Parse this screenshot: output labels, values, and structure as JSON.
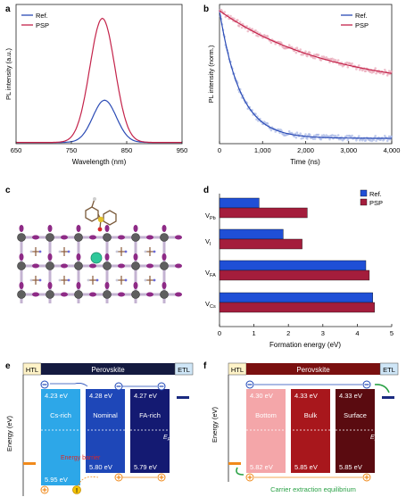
{
  "chart_data": [
    {
      "panel": "a",
      "type": "line",
      "xlabel": "Wavelength (nm)",
      "ylabel": "PL intensity (a.u.)",
      "xlim": [
        650,
        950
      ],
      "x_ticks": [
        "650",
        "750",
        "850",
        "950"
      ],
      "legend": "top-left",
      "series": [
        {
          "name": "Ref.",
          "color": "#2b4bb5",
          "peak_x": 810,
          "peak_y": 0.34,
          "width": 30
        },
        {
          "name": "PSP",
          "color": "#c4234a",
          "peak_x": 806,
          "peak_y": 1.0,
          "width": 32
        }
      ]
    },
    {
      "panel": "b",
      "type": "line",
      "xlabel": "Time (ns)",
      "ylabel": "PL intensity (norm.)",
      "xlim": [
        0,
        4000
      ],
      "x_ticks": [
        "0",
        "1,000",
        "2,000",
        "3,000",
        "4,000"
      ],
      "legend": "top-right",
      "series": [
        {
          "name": "Ref.",
          "color": "#2b4bb5",
          "tau": 480,
          "offset": 0.04
        },
        {
          "name": "PSP",
          "color": "#c4234a",
          "tau": 2600,
          "offset": 0.4
        }
      ]
    },
    {
      "panel": "d",
      "type": "bar",
      "orientation": "horizontal",
      "xlabel": "Formation energy (eV)",
      "xlim": [
        0,
        5
      ],
      "x_ticks": [
        "0",
        "1",
        "2",
        "3",
        "4",
        "5"
      ],
      "categories": [
        "V_Pb",
        "V_I",
        "V_FA",
        "V_Cs"
      ],
      "legend": "top-right",
      "series": [
        {
          "name": "Ref.",
          "color": "#1f4fd6",
          "values": [
            1.15,
            1.85,
            4.25,
            4.45
          ]
        },
        {
          "name": "PSP",
          "color": "#a41d3c",
          "values": [
            2.55,
            2.4,
            4.35,
            4.5
          ]
        }
      ]
    }
  ],
  "panels": {
    "a": "a",
    "b": "b",
    "c": "c",
    "d": "d",
    "e": "e",
    "f": "f"
  },
  "vacancy_labels": [
    {
      "main": "V",
      "sub": "Pb"
    },
    {
      "main": "V",
      "sub": "I"
    },
    {
      "main": "V",
      "sub": "FA"
    },
    {
      "main": "V",
      "sub": "Cs"
    }
  ],
  "panel_e": {
    "htl": "HTL",
    "perovskite": "Perovskite",
    "etl": "ETL",
    "ylabel": "Energy (eV)",
    "ef": "E",
    "ef_sub": "F",
    "columns": [
      {
        "name": "Cs-rich",
        "top": "4.23 eV",
        "bottom": "5.95 eV",
        "color": "#2da7e8"
      },
      {
        "name": "Nominal",
        "top": "4.28 eV",
        "bottom": "5.80 eV",
        "color": "#1e47b8"
      },
      {
        "name": "FA-rich",
        "top": "4.27 eV",
        "bottom": "5.79 eV",
        "color": "#141a72"
      }
    ],
    "barrier": "Energy barrier",
    "header_color": "#141a40"
  },
  "panel_f": {
    "htl": "HTL",
    "perovskite": "Perovskite",
    "etl": "ETL",
    "ylabel": "Energy (eV)",
    "ef": "E",
    "ef_sub": "F",
    "columns": [
      {
        "name": "Bottom",
        "top": "4.30 eV",
        "bottom": "5.82 eV",
        "color": "#f4a6a9"
      },
      {
        "name": "Bulk",
        "top": "4.33 eV",
        "bottom": "5.85 eV",
        "color": "#a8171c"
      },
      {
        "name": "Surface",
        "top": "4.33 eV",
        "bottom": "5.85 eV",
        "color": "#5a0b10"
      }
    ],
    "caption": "Carrier extraction equilibrium",
    "header_color": "#7a1010"
  }
}
